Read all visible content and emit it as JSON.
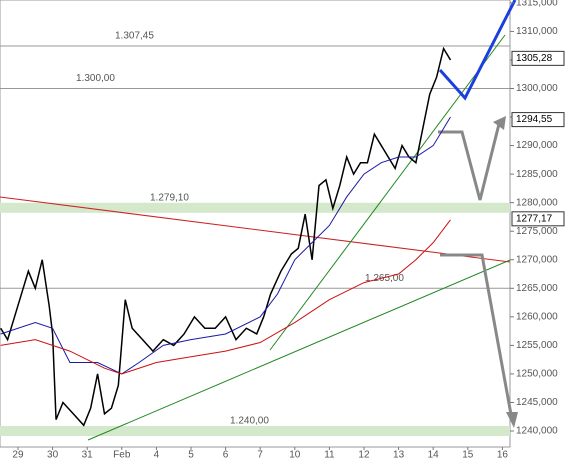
{
  "chart_data": {
    "type": "line",
    "xlim": [
      -0.52,
      14.22
    ],
    "ylim": [
      1237.2,
      1315.5
    ],
    "xticks": [
      {
        "value": 0,
        "label": "29"
      },
      {
        "value": 1,
        "label": "30"
      },
      {
        "value": 2,
        "label": "31"
      },
      {
        "value": 3,
        "label": "Feb"
      },
      {
        "value": 4,
        "label": "4"
      },
      {
        "value": 5,
        "label": "5"
      },
      {
        "value": 6,
        "label": "6"
      },
      {
        "value": 7,
        "label": "7"
      },
      {
        "value": 8,
        "label": "10"
      },
      {
        "value": 9,
        "label": "11"
      },
      {
        "value": 10,
        "label": "12"
      },
      {
        "value": 11,
        "label": "13"
      },
      {
        "value": 12,
        "label": "14"
      },
      {
        "value": 13,
        "label": "15"
      },
      {
        "value": 14,
        "label": "16"
      }
    ],
    "yticks": [
      {
        "value": 1240,
        "label": "1240,000"
      },
      {
        "value": 1245,
        "label": "1245,000"
      },
      {
        "value": 1250,
        "label": "1250,000"
      },
      {
        "value": 1255,
        "label": "1255,000"
      },
      {
        "value": 1260,
        "label": "1260,000"
      },
      {
        "value": 1265,
        "label": "1265,000"
      },
      {
        "value": 1270,
        "label": "1270,000"
      },
      {
        "value": 1275,
        "label": "1275,000"
      },
      {
        "value": 1280,
        "label": "1280,000"
      },
      {
        "value": 1285,
        "label": "1285,000"
      },
      {
        "value": 1290,
        "label": "1290,000"
      },
      {
        "value": 1295,
        "label": "1295,000"
      },
      {
        "value": 1300,
        "label": "1300,000"
      },
      {
        "value": 1305,
        "label": "1305,000"
      },
      {
        "value": 1310,
        "label": "1310,000"
      },
      {
        "value": 1315,
        "label": "1315,000"
      }
    ],
    "series": [
      {
        "color": "#000000",
        "x": [
          -0.5,
          -0.3,
          0,
          0.3,
          0.5,
          0.7,
          0.9,
          1.0,
          1.1,
          1.3,
          1.6,
          1.9,
          2.1,
          2.3,
          2.5,
          2.7,
          2.9,
          3.1,
          3.3,
          3.6,
          3.9,
          4.2,
          4.5,
          4.8,
          5.1,
          5.4,
          5.7,
          6.0,
          6.3,
          6.6,
          6.9,
          7.1,
          7.3,
          7.6,
          7.9,
          8.1,
          8.3,
          8.5,
          8.7,
          8.9,
          9.1,
          9.3,
          9.5,
          9.7,
          9.9,
          10.1,
          10.3,
          10.5,
          10.7,
          10.9,
          11.1,
          11.3,
          11.5,
          11.7,
          11.9,
          12.1,
          12.3,
          12.5
        ],
        "values": [
          1258,
          1256,
          1262,
          1268,
          1265,
          1270,
          1262,
          1257,
          1242,
          1245,
          1243,
          1241,
          1244,
          1250,
          1243,
          1244,
          1248,
          1263,
          1258,
          1256,
          1254,
          1256,
          1255,
          1257,
          1260,
          1258,
          1258,
          1260,
          1256,
          1258,
          1257,
          1260,
          1264,
          1268,
          1271,
          1272,
          1278,
          1270,
          1283,
          1284,
          1279,
          1283,
          1288,
          1285,
          1287,
          1287,
          1292,
          1290,
          1288,
          1286,
          1290,
          1288,
          1287,
          1293,
          1299,
          1302,
          1307,
          1305
        ]
      },
      {
        "color": "#1a1aa6",
        "x": [
          -0.5,
          0.5,
          1.0,
          1.5,
          2.3,
          3.0,
          3.5,
          4.2,
          5.0,
          6.0,
          7.0,
          7.5,
          8.0,
          8.5,
          9.0,
          9.5,
          10.0,
          10.5,
          11.0,
          11.5,
          12.0,
          12.3,
          12.5
        ],
        "values": [
          1257,
          1259,
          1258,
          1252,
          1252,
          1250,
          1252,
          1255,
          1256,
          1257,
          1260,
          1264,
          1270,
          1273,
          1276,
          1281,
          1285,
          1287,
          1288,
          1288,
          1290,
          1293,
          1295
        ]
      },
      {
        "color": "#cc1111",
        "x": [
          -0.5,
          0.5,
          1.5,
          2.5,
          3.0,
          4.0,
          5.0,
          6.0,
          7.0,
          8.0,
          9.0,
          10.0,
          11.0,
          11.5,
          12.0,
          12.5
        ],
        "values": [
          1255,
          1256,
          1254,
          1251,
          1250,
          1252,
          1253,
          1254,
          1255.5,
          1259,
          1263,
          1266,
          1267.5,
          1270,
          1273,
          1277
        ]
      }
    ],
    "levels": [
      {
        "value": 1307.45,
        "label": "1.307,45"
      },
      {
        "value": 1300,
        "label": "1.300,00"
      },
      {
        "value": 1279.1,
        "label": "1.279,10"
      },
      {
        "value": 1265,
        "label": "1.265,00"
      },
      {
        "value": 1240,
        "label": "1.240,00"
      }
    ],
    "price_tags": [
      {
        "value": 1305.28,
        "label": "1305,28"
      },
      {
        "value": 1294.55,
        "label": "1294,55"
      },
      {
        "value": 1277.17,
        "label": "1277,17"
      }
    ]
  }
}
